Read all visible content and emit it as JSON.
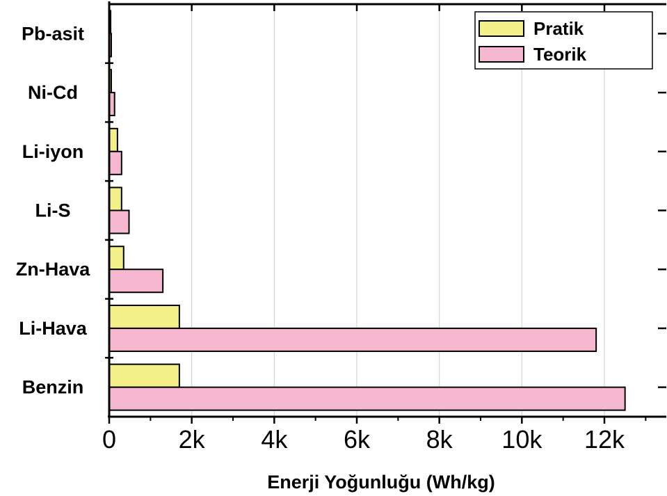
{
  "chart_data": {
    "type": "bar",
    "orientation": "horizontal",
    "categories": [
      "Pb-asit",
      "Ni-Cd",
      "Li-iyon",
      "Li-S",
      "Zn-Hava",
      "Li-Hava",
      "Benzin"
    ],
    "series": [
      {
        "name": "Pratik",
        "color": "#f4f18a",
        "values": [
          35,
          50,
          200,
          300,
          350,
          1700,
          1700
        ]
      },
      {
        "name": "Teorik",
        "color": "#f5b8d0",
        "values": [
          50,
          130,
          300,
          480,
          1300,
          11800,
          12500
        ]
      }
    ],
    "xlabel": "Enerji Yoğunluğu (Wh/kg)",
    "ylabel": "",
    "xlim": [
      0,
      13500
    ],
    "xticks": [
      0,
      2000,
      4000,
      6000,
      8000,
      10000,
      12000
    ],
    "xtick_labels": [
      "0",
      "2k",
      "4k",
      "6k",
      "8k",
      "10k",
      "12k"
    ],
    "grid": {
      "vertical": true,
      "horizontal": false
    },
    "legend": {
      "position": "top-right"
    }
  }
}
